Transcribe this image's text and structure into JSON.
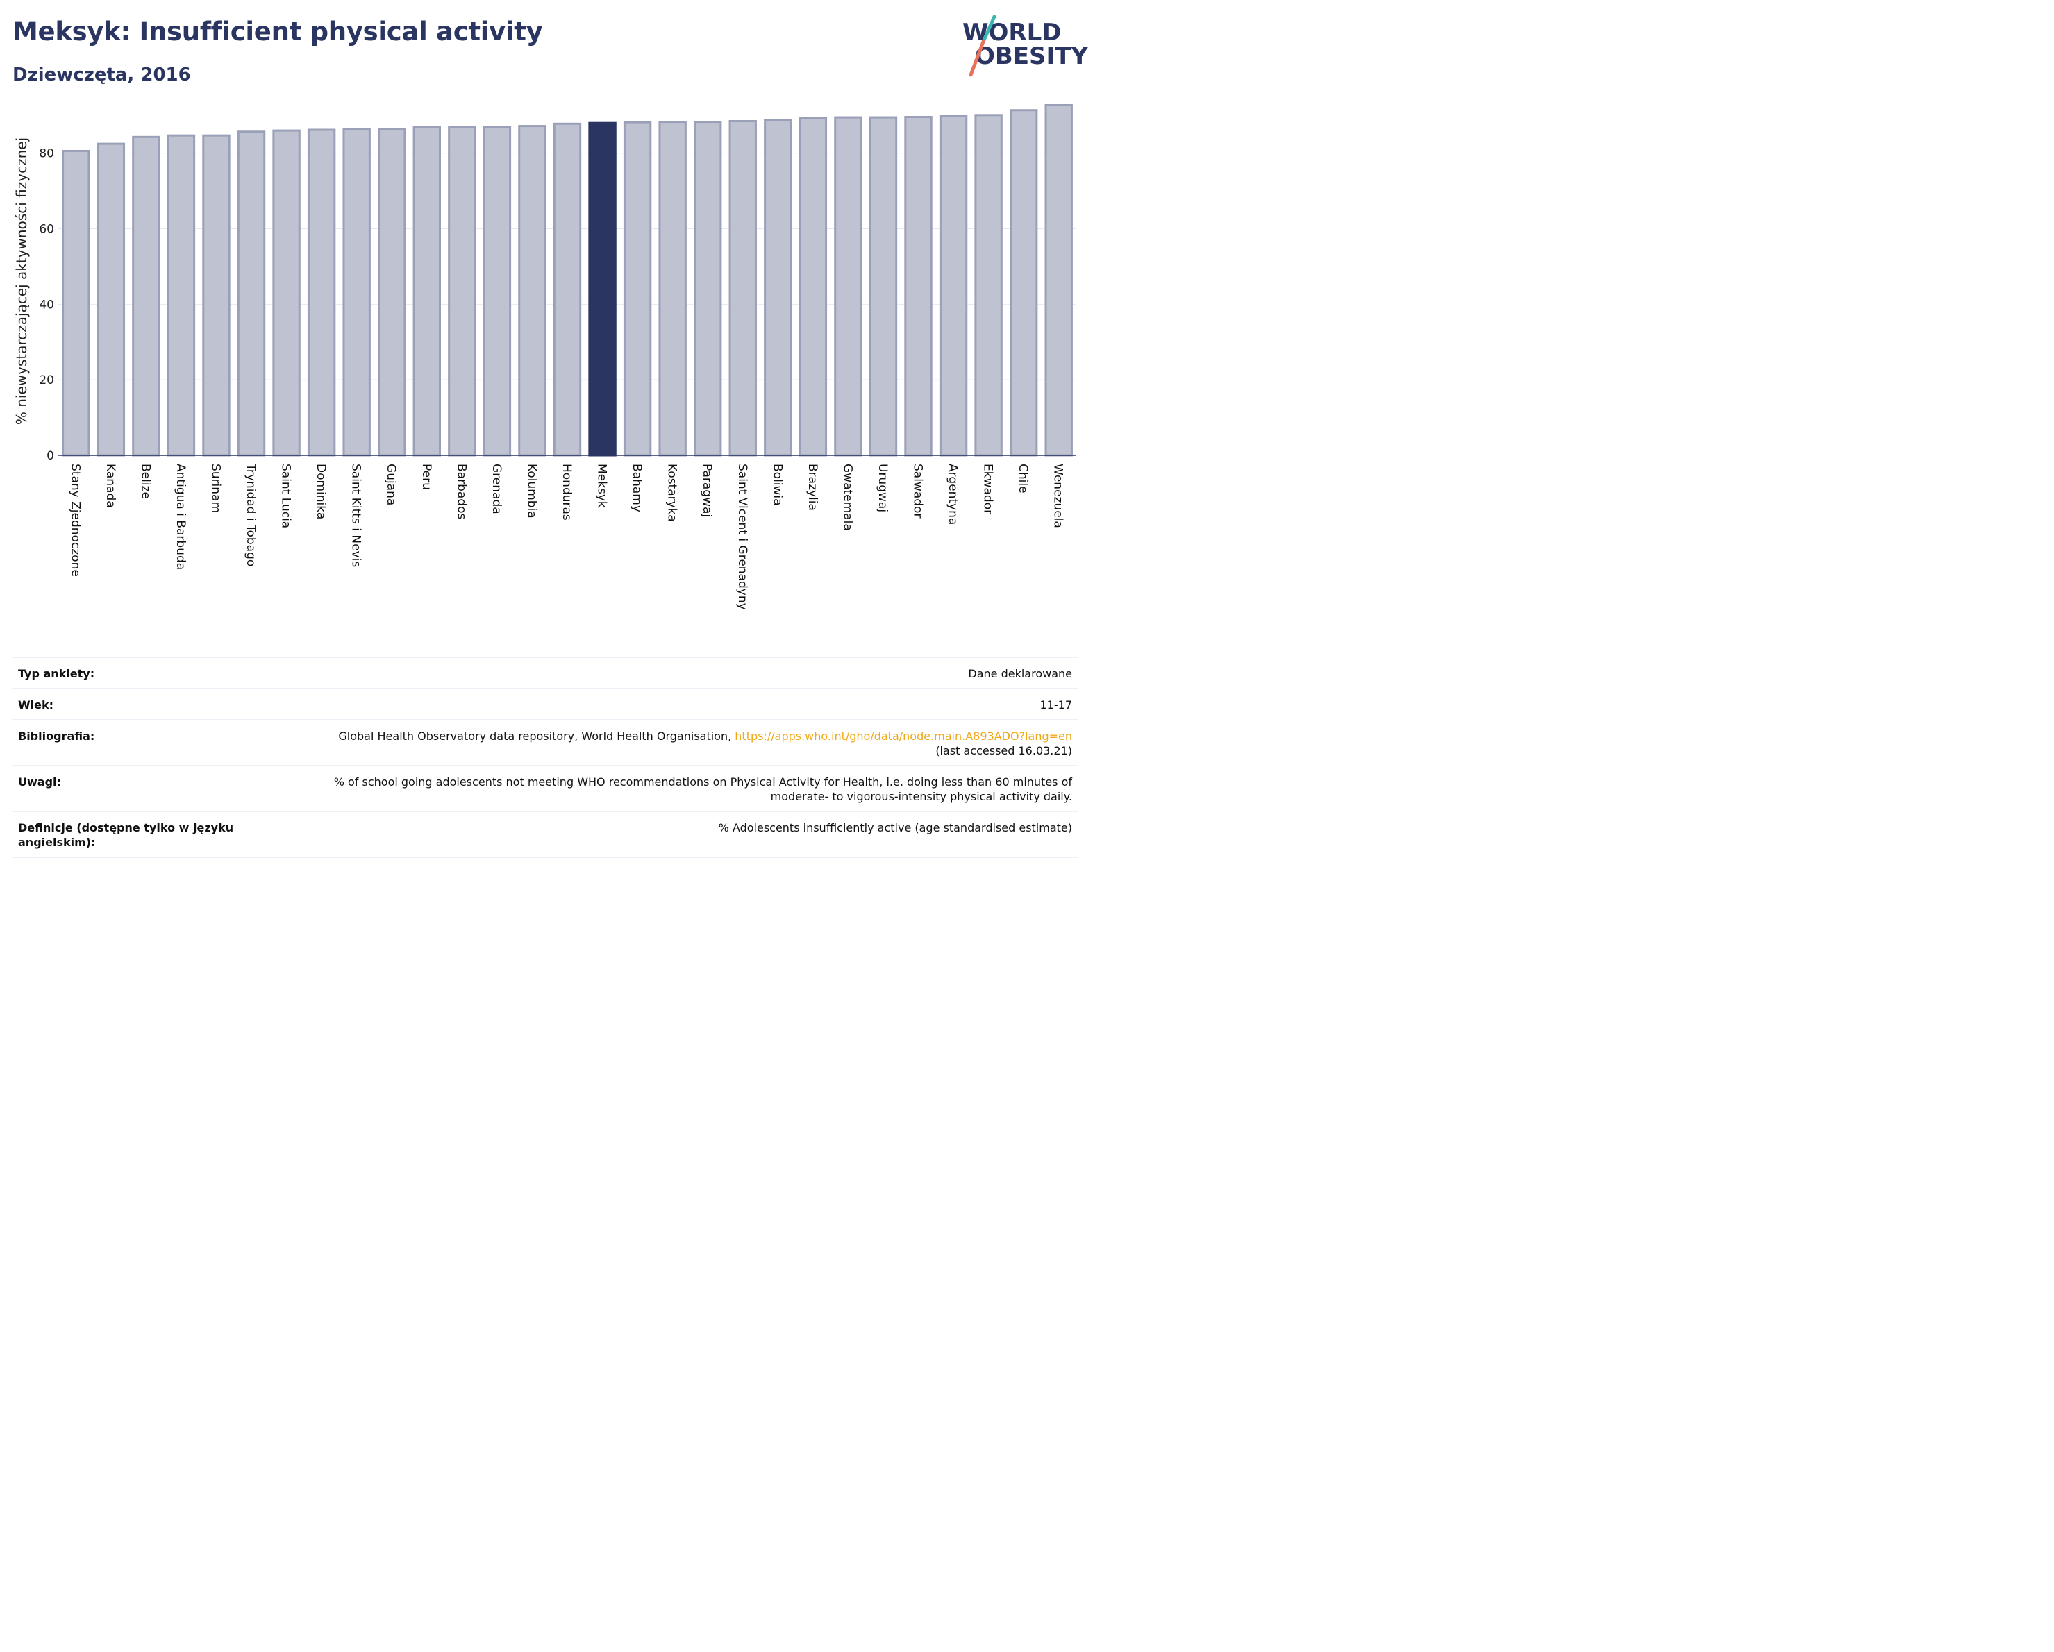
{
  "header": {
    "title": "Meksyk: Insufficient physical activity",
    "subtitle": "Dziewczęta, 2016"
  },
  "logo": {
    "line1": "WORLD",
    "line2": "OBESITY"
  },
  "colors": {
    "highlight": "#2a3561",
    "bar": "#bfc2d0",
    "bar_border": "#9aa0b8",
    "logo_teal": "#3bb5b0",
    "logo_coral": "#e8735a",
    "link": "#f0a818"
  },
  "chart_data": {
    "type": "bar",
    "ylabel": "% niewystarczającej aktywności fizycznej",
    "ylim": [
      0,
      93
    ],
    "yticks": [
      0,
      20,
      40,
      60,
      80
    ],
    "grid": true,
    "highlight": "Meksyk",
    "categories": [
      "Stany Zjednoczone",
      "Kanada",
      "Belize",
      "Antigua i Barbuda",
      "Surinam",
      "Trynidad i Tobago",
      "Saint Lucia",
      "Dominika",
      "Saint Kitts i Nevis",
      "Gujana",
      "Peru",
      "Barbados",
      "Grenada",
      "Kolumbia",
      "Honduras",
      "Meksyk",
      "Bahamy",
      "Kostaryka",
      "Paragwaj",
      "Saint Vicent i Grenadyny",
      "Boliwia",
      "Brazylia",
      "Gwatemala",
      "Urugwaj",
      "Salwador",
      "Argentyna",
      "Ekwador",
      "Chile",
      "Wenezuela"
    ],
    "values": [
      80.6,
      82.5,
      84.3,
      84.7,
      84.7,
      85.7,
      86.0,
      86.2,
      86.3,
      86.4,
      86.9,
      87.0,
      87.0,
      87.2,
      87.8,
      88.0,
      88.2,
      88.3,
      88.3,
      88.5,
      88.7,
      89.4,
      89.5,
      89.5,
      89.6,
      89.9,
      90.1,
      91.4,
      92.8
    ]
  },
  "meta": {
    "rows": [
      {
        "label": "Typ ankiety:",
        "value": "Dane deklarowane"
      },
      {
        "label": "Wiek:",
        "value": "11-17"
      },
      {
        "label": "Bibliografia:",
        "value": "Global Health Observatory data repository, World Health Organisation, ",
        "link": "https://apps.who.int/gho/data/node.main.A893ADO?lang=en",
        "value2": "(last accessed 16.03.21)"
      },
      {
        "label": "Uwagi:",
        "value": "% of school going adolescents not meeting WHO recommendations on Physical Activity for Health, i.e. doing less than 60 minutes of",
        "value2": "moderate- to vigorous-intensity physical activity daily."
      },
      {
        "label": "Definicje (dostępne tylko w języku angielskim):",
        "value": "% Adolescents insufficiently active (age standardised estimate)"
      }
    ]
  }
}
